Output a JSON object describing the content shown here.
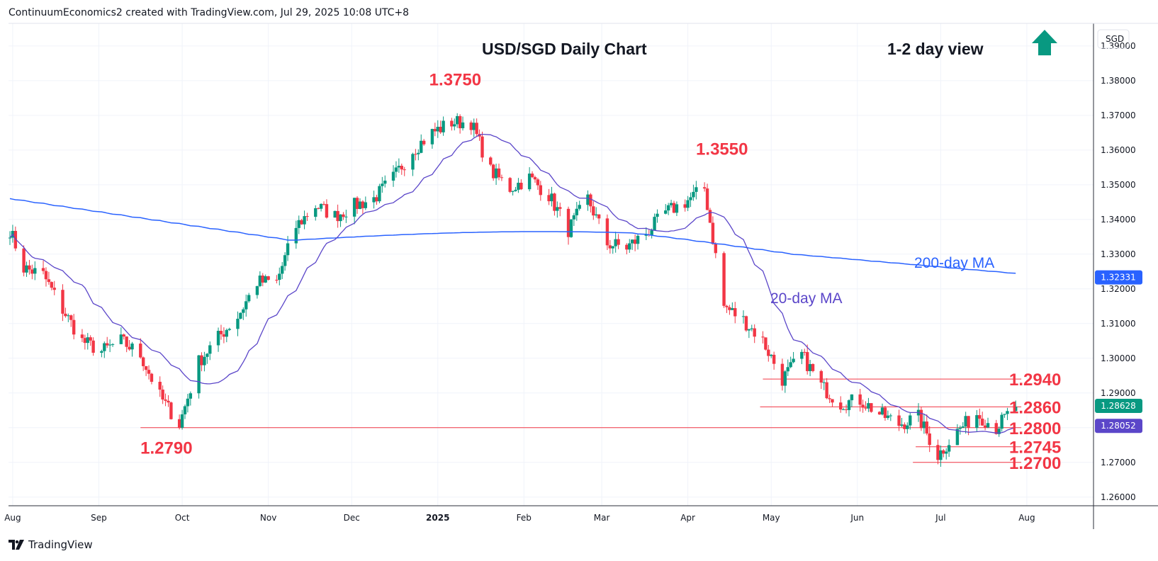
{
  "header": {
    "credit": "ContinuumEconomics2 created with TradingView.com, Jul 29, 2025 10:08 UTC+8"
  },
  "footer": {
    "brand": "TradingView"
  },
  "colors": {
    "up": "#089981",
    "down": "#f23645",
    "ma200": "#2962ff",
    "ma20": "#5b46c9",
    "level": "#f23645",
    "arrow": "#089981"
  },
  "icons": {
    "arrow": "up-arrow-icon",
    "logo": "tradingview-logo-icon"
  },
  "chart_data": {
    "type": "candlestick",
    "title": "USD/SGD Daily Chart",
    "subtitle": "1-2 day view",
    "currency": "SGD",
    "x_ticks": [
      "Aug",
      "Sep",
      "Oct",
      "Nov",
      "Dec",
      "2025",
      "Feb",
      "Mar",
      "Apr",
      "May",
      "Jun",
      "Jul",
      "Aug"
    ],
    "y_ticks": [
      "1.26000",
      "1.27000",
      "1.28000",
      "1.29000",
      "1.30000",
      "1.31000",
      "1.32000",
      "1.33000",
      "1.34000",
      "1.35000",
      "1.36000",
      "1.37000",
      "1.38000",
      "1.39000"
    ],
    "ylim": [
      1.2575,
      1.3965
    ],
    "x_range": [
      "2024-07-31",
      "2025-08-25"
    ],
    "price_labels": [
      {
        "value": "1.32331",
        "color": "#2962ff"
      },
      {
        "value": "1.28628",
        "color": "#089981"
      },
      {
        "value": "1.28052",
        "color": "#5b46c9"
      }
    ],
    "levels": [
      {
        "label": "1.3750",
        "value": 1.375,
        "date": "2025-01-02"
      },
      {
        "label": "1.3550",
        "value": 1.355,
        "date": "2025-04-08"
      },
      {
        "label": "1.2940",
        "value": 1.294,
        "date": "2025-04-28",
        "line": true
      },
      {
        "label": "1.2860",
        "value": 1.286,
        "date": "2025-04-27",
        "line": true
      },
      {
        "label": "1.2800",
        "value": 1.28,
        "date": "2024-09-16",
        "line": true
      },
      {
        "label": "1.2745",
        "value": 1.2745,
        "date": "2025-06-22",
        "line": true
      },
      {
        "label": "1.2700",
        "value": 1.27,
        "date": "2025-06-21",
        "line": true
      },
      {
        "label": "1.2790",
        "value": 1.279,
        "date": "2024-09-30"
      }
    ],
    "ma_labels": {
      "ma200": "200-day MA",
      "ma20": "20-day MA"
    },
    "anchors": [
      [
        "2024-07-31",
        1.337
      ],
      [
        "2024-08-05",
        1.326
      ],
      [
        "2024-08-12",
        1.324
      ],
      [
        "2024-08-19",
        1.314
      ],
      [
        "2024-08-26",
        1.305
      ],
      [
        "2024-09-02",
        1.302
      ],
      [
        "2024-09-09",
        1.305
      ],
      [
        "2024-09-16",
        1.301
      ],
      [
        "2024-09-23",
        1.289
      ],
      [
        "2024-09-30",
        1.281
      ],
      [
        "2024-10-07",
        1.299
      ],
      [
        "2024-10-14",
        1.306
      ],
      [
        "2024-10-21",
        1.312
      ],
      [
        "2024-10-28",
        1.322
      ],
      [
        "2024-11-04",
        1.322
      ],
      [
        "2024-11-11",
        1.338
      ],
      [
        "2024-11-18",
        1.344
      ],
      [
        "2024-11-25",
        1.341
      ],
      [
        "2024-12-02",
        1.344
      ],
      [
        "2024-12-09",
        1.346
      ],
      [
        "2024-12-16",
        1.352
      ],
      [
        "2024-12-23",
        1.36
      ],
      [
        "2024-12-30",
        1.365
      ],
      [
        "2025-01-06",
        1.368
      ],
      [
        "2025-01-13",
        1.368
      ],
      [
        "2025-01-20",
        1.354
      ],
      [
        "2025-01-27",
        1.349
      ],
      [
        "2025-02-03",
        1.352
      ],
      [
        "2025-02-10",
        1.347
      ],
      [
        "2025-02-17",
        1.337
      ],
      [
        "2025-02-24",
        1.346
      ],
      [
        "2025-03-03",
        1.333
      ],
      [
        "2025-03-10",
        1.332
      ],
      [
        "2025-03-17",
        1.336
      ],
      [
        "2025-03-24",
        1.342
      ],
      [
        "2025-03-31",
        1.345
      ],
      [
        "2025-04-07",
        1.349
      ],
      [
        "2025-04-14",
        1.315
      ],
      [
        "2025-04-21",
        1.311
      ],
      [
        "2025-04-28",
        1.305
      ],
      [
        "2025-05-05",
        1.294
      ],
      [
        "2025-05-12",
        1.301
      ],
      [
        "2025-05-19",
        1.292
      ],
      [
        "2025-05-26",
        1.287
      ],
      [
        "2025-06-02",
        1.288
      ],
      [
        "2025-06-09",
        1.284
      ],
      [
        "2025-06-16",
        1.281
      ],
      [
        "2025-06-23",
        1.283
      ],
      [
        "2025-06-30",
        1.272
      ],
      [
        "2025-07-07",
        1.279
      ],
      [
        "2025-07-14",
        1.284
      ],
      [
        "2025-07-21",
        1.28
      ],
      [
        "2025-07-28",
        1.2863
      ]
    ]
  }
}
